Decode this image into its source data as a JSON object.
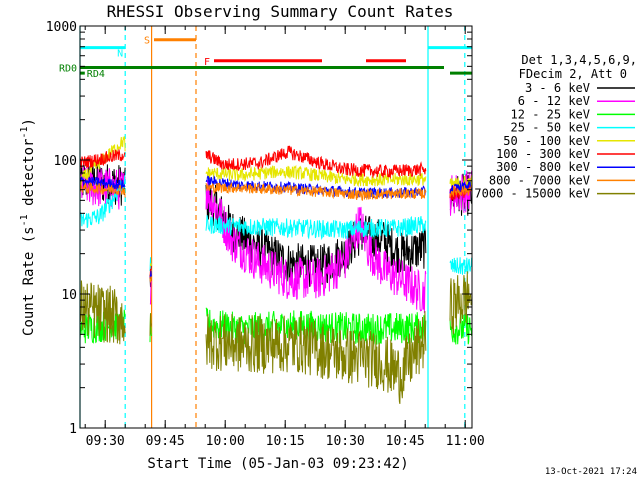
{
  "chart_data": {
    "type": "line",
    "title": "RHESSI Observing Summary Count Rates",
    "xlabel": "Start Time (05-Jan-03 09:23:42)",
    "ylabel_main": "Count Rate (s",
    "ylabel_sup1": "-1",
    "ylabel_mid": " detector",
    "ylabel_sup2": "-1",
    "ylabel_end": ")",
    "yscale": "log",
    "ylim": [
      1,
      1000
    ],
    "xlim_minutes": [
      0,
      98
    ],
    "x_ticks": [
      {
        "label": "09:30",
        "t": 6.3
      },
      {
        "label": "09:45",
        "t": 21.3
      },
      {
        "label": "10:00",
        "t": 36.3
      },
      {
        "label": "10:15",
        "t": 51.3
      },
      {
        "label": "10:30",
        "t": 66.3
      },
      {
        "label": "10:45",
        "t": 81.3
      },
      {
        "label": "11:00",
        "t": 96.3
      }
    ],
    "y_ticks": [
      {
        "label": "1",
        "v": 1
      },
      {
        "label": "10",
        "v": 10
      },
      {
        "label": "100",
        "v": 100
      },
      {
        "label": "1000",
        "v": 1000
      }
    ],
    "legend_header": [
      "Det 1,3,4,5,6,9,",
      "FDecim 2, Att 0"
    ],
    "series": [
      {
        "name": "3 - 6 keV",
        "color": "#000000"
      },
      {
        "name": "6 - 12 keV",
        "color": "#ff00ff"
      },
      {
        "name": "12 - 25 keV",
        "color": "#00ff00"
      },
      {
        "name": "25 - 50 keV",
        "color": "#00ffff"
      },
      {
        "name": "50 - 100 keV",
        "color": "#e6e600"
      },
      {
        "name": "100 - 300 keV",
        "color": "#ff0000"
      },
      {
        "name": "300 - 800 keV",
        "color": "#0000ff"
      },
      {
        "name": "800 - 7000 keV",
        "color": "#ff8000"
      },
      {
        "name": "7000 - 15000 keV",
        "color": "#808000"
      }
    ],
    "segments": [
      {
        "start": 0,
        "end": 11.3
      },
      {
        "start": 17.5,
        "end": 17.9
      },
      {
        "start": 31.5,
        "end": 86.5
      },
      {
        "start": 92.5,
        "end": 98
      }
    ],
    "key_points": [
      {
        "series": "3 - 6 keV",
        "points": [
          [
            0,
            70
          ],
          [
            11,
            65
          ],
          [
            17.5,
            14
          ],
          [
            31.5,
            50
          ],
          [
            34,
            45
          ],
          [
            38,
            30
          ],
          [
            45,
            22
          ],
          [
            52,
            17
          ],
          [
            60,
            16
          ],
          [
            66,
            20
          ],
          [
            70,
            28
          ],
          [
            76,
            25
          ],
          [
            80,
            20
          ],
          [
            86,
            22
          ],
          [
            92.5,
            55
          ],
          [
            98,
            55
          ]
        ]
      },
      {
        "series": "6 - 12 keV",
        "points": [
          [
            0,
            65
          ],
          [
            11,
            60
          ],
          [
            17.5,
            12
          ],
          [
            31.5,
            60
          ],
          [
            34,
            45
          ],
          [
            38,
            25
          ],
          [
            45,
            17
          ],
          [
            52,
            13
          ],
          [
            60,
            13
          ],
          [
            66,
            17
          ],
          [
            70,
            35
          ],
          [
            72,
            22
          ],
          [
            76,
            15
          ],
          [
            80,
            13
          ],
          [
            86,
            10
          ],
          [
            92.5,
            55
          ],
          [
            98,
            60
          ]
        ]
      },
      {
        "series": "12 - 25 keV",
        "points": [
          [
            0,
            5.5
          ],
          [
            11,
            6
          ],
          [
            17.5,
            5.5
          ],
          [
            31.5,
            6
          ],
          [
            40,
            5.5
          ],
          [
            55,
            5.8
          ],
          [
            70,
            5.5
          ],
          [
            86,
            5.6
          ],
          [
            92.5,
            5.5
          ],
          [
            98,
            5.5
          ]
        ]
      },
      {
        "series": "25 - 50 keV",
        "points": [
          [
            0,
            35
          ],
          [
            5,
            38
          ],
          [
            8,
            50
          ],
          [
            11,
            70
          ],
          [
            17.5,
            16
          ],
          [
            31.5,
            33
          ],
          [
            40,
            32
          ],
          [
            55,
            31
          ],
          [
            66,
            30
          ],
          [
            70,
            31
          ],
          [
            80,
            31
          ],
          [
            86,
            33
          ],
          [
            92.5,
            16
          ],
          [
            98,
            16
          ]
        ]
      },
      {
        "series": "50 - 100 keV",
        "points": [
          [
            0,
            70
          ],
          [
            11,
            140
          ],
          [
            17.5,
            15
          ],
          [
            31.5,
            80
          ],
          [
            40,
            77
          ],
          [
            50,
            82
          ],
          [
            55,
            80
          ],
          [
            66,
            72
          ],
          [
            76,
            71
          ],
          [
            86,
            72
          ],
          [
            92.5,
            65
          ],
          [
            98,
            70
          ]
        ]
      },
      {
        "series": "100 - 300 keV",
        "points": [
          [
            0,
            95
          ],
          [
            11,
            110
          ],
          [
            17.5,
            14
          ],
          [
            31.5,
            110
          ],
          [
            36,
            92
          ],
          [
            45,
            95
          ],
          [
            52,
            115
          ],
          [
            60,
            95
          ],
          [
            66,
            85
          ],
          [
            76,
            82
          ],
          [
            86,
            85
          ],
          [
            92.5,
            55
          ],
          [
            98,
            60
          ]
        ]
      },
      {
        "series": "300 - 800 keV",
        "points": [
          [
            0,
            70
          ],
          [
            11,
            65
          ],
          [
            17.5,
            14
          ],
          [
            31.5,
            70
          ],
          [
            40,
            65
          ],
          [
            50,
            63
          ],
          [
            60,
            60
          ],
          [
            70,
            57
          ],
          [
            80,
            57
          ],
          [
            86,
            58
          ],
          [
            92.5,
            60
          ],
          [
            98,
            65
          ]
        ]
      },
      {
        "series": "800 - 7000 keV",
        "points": [
          [
            0,
            62
          ],
          [
            11,
            60
          ],
          [
            17.5,
            13
          ],
          [
            31.5,
            62
          ],
          [
            40,
            62
          ],
          [
            50,
            60
          ],
          [
            60,
            58
          ],
          [
            70,
            55
          ],
          [
            80,
            56
          ],
          [
            86,
            56
          ],
          [
            92.5,
            58
          ],
          [
            98,
            60
          ]
        ]
      },
      {
        "series": "7000 - 15000 keV",
        "points": [
          [
            0,
            8
          ],
          [
            11,
            6.5
          ],
          [
            17.5,
            4.5
          ],
          [
            31.5,
            4.5
          ],
          [
            40,
            4.2
          ],
          [
            55,
            4.2
          ],
          [
            66,
            3.5
          ],
          [
            75,
            3.2
          ],
          [
            80,
            2.5
          ],
          [
            86,
            4.5
          ],
          [
            92.5,
            8
          ],
          [
            98,
            10
          ]
        ]
      }
    ],
    "flag_bars": [
      {
        "label": "S",
        "color": "#ff8000",
        "start": 18.5,
        "end": 29,
        "level": 790
      },
      {
        "label": "F",
        "color": "#ff0000",
        "start": 33.5,
        "end": 60.5,
        "level": 550
      },
      {
        "label": "",
        "color": "#ff0000",
        "start": 71.5,
        "end": 81.5,
        "level": 550
      },
      {
        "label": "N",
        "color": "#00ffff",
        "start": 0,
        "end": 11.3,
        "level": 690
      },
      {
        "label": "",
        "color": "#00ffff",
        "start": 87,
        "end": 98,
        "level": 690
      },
      {
        "label": "RD0",
        "color": "#008000",
        "start": 0,
        "end": 91,
        "level": 490
      },
      {
        "label": "RD4",
        "color": "#008000",
        "start": 0,
        "end": 1.2,
        "level": 445
      },
      {
        "label": "",
        "color": "#008000",
        "start": 92.5,
        "end": 98,
        "level": 445
      }
    ],
    "vlines": [
      {
        "t": 0,
        "color": "#00ffff",
        "style": "solid"
      },
      {
        "t": 11.3,
        "color": "#00ffff",
        "style": "dashed"
      },
      {
        "t": 17.9,
        "color": "#ff8000",
        "style": "solid"
      },
      {
        "t": 29,
        "color": "#ff8000",
        "style": "dashed"
      },
      {
        "t": 87,
        "color": "#00ffff",
        "style": "solid"
      },
      {
        "t": 96.2,
        "color": "#00ffff",
        "style": "dashed"
      }
    ],
    "timestamp": "13-Oct-2021 17:24"
  }
}
